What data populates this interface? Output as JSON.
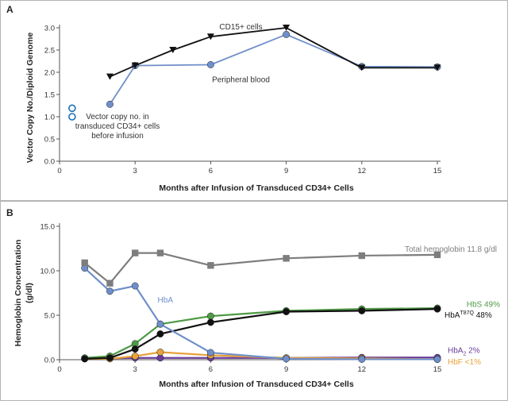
{
  "chart_data": [
    {
      "panel": "A",
      "type": "line",
      "xlabel": "Months after Infusion of Transduced CD34+ Cells",
      "ylabel": "Vector Copy No./Diploid Genome",
      "xlim": [
        0,
        15
      ],
      "ylim": [
        0,
        3.0
      ],
      "xticks": [
        0,
        3,
        6,
        9,
        12,
        15
      ],
      "yticks": [
        0,
        0.5,
        1.0,
        1.5,
        2.0,
        2.5,
        3.0
      ],
      "ytick_labels": [
        "0.0",
        "0.5",
        "1.0",
        "1.5",
        "2.0",
        "2.5",
        "3.0"
      ],
      "series": [
        {
          "name": "CD15+ cells",
          "color": "#111111",
          "marker": "triangle-down",
          "x": [
            2,
            3,
            4.5,
            6,
            9,
            12,
            15
          ],
          "values": [
            1.9,
            2.15,
            2.5,
            2.8,
            3.0,
            2.1,
            2.1
          ]
        },
        {
          "name": "Peripheral blood",
          "color": "#6f8fca",
          "marker": "circle",
          "x": [
            2,
            3,
            6,
            9,
            12,
            15
          ],
          "values": [
            1.28,
            2.15,
            2.17,
            2.85,
            2.13,
            2.12
          ]
        }
      ],
      "pre_infusion": {
        "label_lines": [
          "Vector copy no. in",
          "transduced CD34+ cells",
          "before infusion"
        ],
        "color": "#1a6fb5",
        "x": 0.5,
        "values": [
          1.19,
          1.0
        ]
      }
    },
    {
      "panel": "B",
      "type": "line",
      "xlabel": "Months after Infusion of Transduced CD34+ Cells",
      "ylabel_lines": [
        "Hemoglobin Concentration",
        "(g/dl)"
      ],
      "xlim": [
        0,
        15
      ],
      "ylim": [
        0,
        15.0
      ],
      "xticks": [
        0,
        3,
        6,
        9,
        12,
        15
      ],
      "yticks": [
        0,
        5,
        10,
        15
      ],
      "ytick_labels": [
        "0.0",
        "5.0",
        "10.0",
        "15.0"
      ],
      "x": [
        1,
        2,
        3,
        4,
        6,
        9,
        12,
        15
      ],
      "series": [
        {
          "name": "Total hemoglobin",
          "label": "Total hemoglobin 11.8 g/dl",
          "color": "#7d7d7d",
          "marker": "square",
          "values": [
            10.9,
            8.6,
            12.0,
            12.0,
            10.6,
            11.4,
            11.7,
            11.8
          ]
        },
        {
          "name": "HbA",
          "label": "HbA",
          "color": "#6f8fca",
          "marker": "circle",
          "values": [
            10.3,
            7.7,
            8.3,
            4.0,
            0.8,
            0.1,
            0.05,
            0.05
          ]
        },
        {
          "name": "HbS",
          "label": "HbS 49%",
          "color": "#4f9a46",
          "marker": "circle",
          "values": [
            0.2,
            0.4,
            1.8,
            4.0,
            4.9,
            5.5,
            5.7,
            5.8
          ]
        },
        {
          "name": "HbA-T87Q",
          "label_main": "HbA",
          "label_sup": "T87Q",
          "label_tail": " 48%",
          "color": "#111111",
          "marker": "circle",
          "values": [
            0.1,
            0.2,
            1.2,
            2.9,
            4.2,
            5.4,
            5.5,
            5.7
          ]
        },
        {
          "name": "HbA2",
          "label_main": "HbA",
          "label_sub": "2",
          "label_tail": " 2%",
          "color": "#6a3d9a",
          "marker": "circle",
          "values": [
            0.15,
            0.15,
            0.2,
            0.2,
            0.2,
            0.2,
            0.25,
            0.25
          ]
        },
        {
          "name": "HbF",
          "label": "HbF <1%",
          "color": "#e6a23c",
          "marker": "circle",
          "values": [
            0.1,
            0.1,
            0.4,
            0.85,
            0.5,
            0.2,
            0.15,
            0.05
          ]
        }
      ]
    }
  ]
}
